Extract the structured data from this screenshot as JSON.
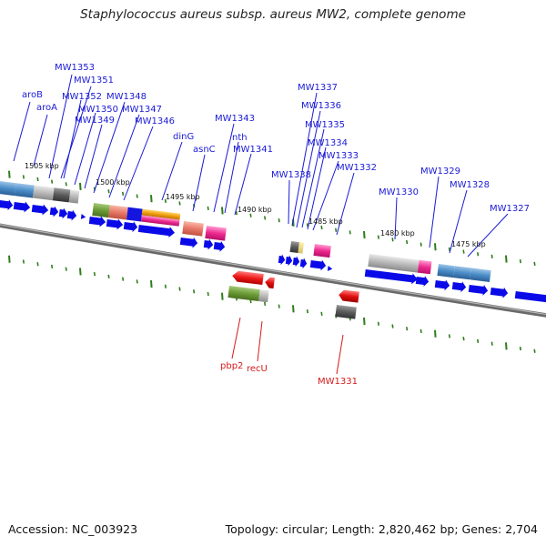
{
  "title": "Staphylococcus aureus subsp. aureus MW2, complete genome",
  "footer": {
    "accession": "Accession: NC_003923",
    "summary": "Topology: circular; Length: 2,820,462 bp; Genes: 2,704"
  },
  "colors": {
    "label_forward": "#1a1ad6",
    "label_reverse": "#d61a1a",
    "arrow": "#0a0ae8",
    "tick": "#2e7d1c",
    "backbone": "#8a8a8a"
  },
  "kbp_labels": [
    "1505 kbp",
    "1500 kbp",
    "1495 kbp",
    "1490 kbp",
    "1485 kbp",
    "1480 kbp",
    "1475 kbp"
  ],
  "forward_labels": [
    "aroB",
    "aroA",
    "MW1353",
    "MW1351",
    "MW1352",
    "MW1350",
    "MW1349",
    "MW1348",
    "MW1347",
    "MW1346",
    "dinG",
    "asnC",
    "MW1343",
    "nth",
    "MW1341",
    "MW1338",
    "MW1337",
    "MW1336",
    "MW1335",
    "MW1334",
    "MW1333",
    "MW1332",
    "MW1330",
    "MW1329",
    "MW1328",
    "MW1327"
  ],
  "reverse_labels": [
    "pbp2",
    "recU",
    "MW1331"
  ]
}
